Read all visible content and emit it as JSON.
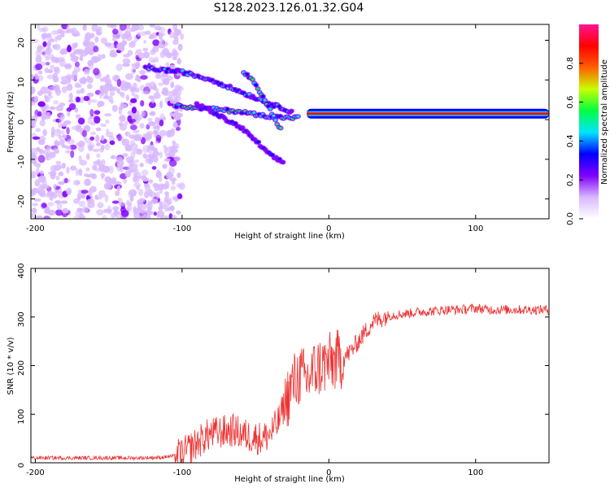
{
  "title": "S128.2023.126.01.32.G04",
  "chart_data": [
    {
      "type": "heatmap",
      "xlabel": "Height of straight line (km)",
      "ylabel": "Frequency (Hz)",
      "xlim": [
        -203,
        150
      ],
      "ylim": [
        -25,
        24
      ],
      "xticks": [
        -200,
        -100,
        0,
        100
      ],
      "yticks": [
        -20,
        -10,
        0,
        10,
        20
      ],
      "colorbar": {
        "label": "Normalized spectral amplitude",
        "range": [
          0,
          1
        ],
        "ticks": [
          "0.0",
          "0.2",
          "0.4",
          "0.6",
          "0.8"
        ],
        "colors": [
          "#ffffff",
          "#d8b8ff",
          "#8000ff",
          "#0000ff",
          "#00e5ff",
          "#00ff40",
          "#c8ff00",
          "#ff6000",
          "#ff0000",
          "#ff1493"
        ]
      },
      "features": [
        {
          "name": "noise",
          "x_range": [
            -203,
            -100
          ],
          "freq_range": [
            -25,
            24
          ],
          "amplitude": 0.1
        },
        {
          "name": "tone-main",
          "x_range": [
            -15,
            150
          ],
          "freq": 1.5,
          "amplitude": 0.9
        },
        {
          "name": "branch-upper",
          "x": [
            -125,
            -100,
            -80,
            -60,
            -40,
            -25
          ],
          "freq": [
            13,
            12,
            10,
            7,
            4,
            2
          ],
          "amplitude": 0.4
        },
        {
          "name": "branch-middle",
          "x": [
            -105,
            -90,
            -75,
            -60,
            -45,
            -30,
            -20
          ],
          "freq": [
            3.5,
            3,
            2.5,
            2,
            1,
            0.5,
            0.5
          ],
          "amplitude": 0.5
        },
        {
          "name": "branch-steep",
          "x": [
            -58,
            -50,
            -44,
            -38,
            -32
          ],
          "freq": [
            12,
            9,
            5,
            1,
            -3
          ],
          "amplitude": 0.45
        },
        {
          "name": "branch-lower",
          "x": [
            -90,
            -75,
            -60,
            -48,
            -40,
            -30
          ],
          "freq": [
            4,
            1,
            -2,
            -6,
            -9,
            -11
          ],
          "amplitude": 0.3
        }
      ]
    },
    {
      "type": "line",
      "xlabel": "Height of straight line (km)",
      "ylabel": "SNR (10 * v/v)",
      "xlim": [
        -203,
        150
      ],
      "ylim": [
        0,
        400
      ],
      "xticks": [
        -200,
        -100,
        0,
        100
      ],
      "yticks": [
        0,
        100,
        200,
        300,
        400
      ],
      "series": [
        {
          "name": "SNR",
          "color": "#ee3333",
          "x": [
            -203,
            -190,
            -175,
            -160,
            -145,
            -130,
            -115,
            -105,
            -100,
            -95,
            -90,
            -85,
            -80,
            -75,
            -70,
            -65,
            -60,
            -55,
            -50,
            -45,
            -40,
            -35,
            -30,
            -25,
            -20,
            -15,
            -10,
            -5,
            0,
            5,
            10,
            15,
            20,
            25,
            30,
            40,
            50,
            60,
            70,
            80,
            90,
            100,
            110,
            120,
            130,
            140,
            150
          ],
          "values": [
            10,
            10,
            10,
            10,
            10,
            10,
            11,
            14,
            18,
            28,
            40,
            52,
            60,
            62,
            65,
            67,
            60,
            55,
            52,
            50,
            60,
            80,
            120,
            160,
            180,
            170,
            190,
            200,
            205,
            210,
            215,
            230,
            250,
            270,
            290,
            303,
            306,
            310,
            312,
            315,
            315,
            318,
            315,
            315,
            315,
            315,
            315
          ]
        }
      ]
    }
  ]
}
